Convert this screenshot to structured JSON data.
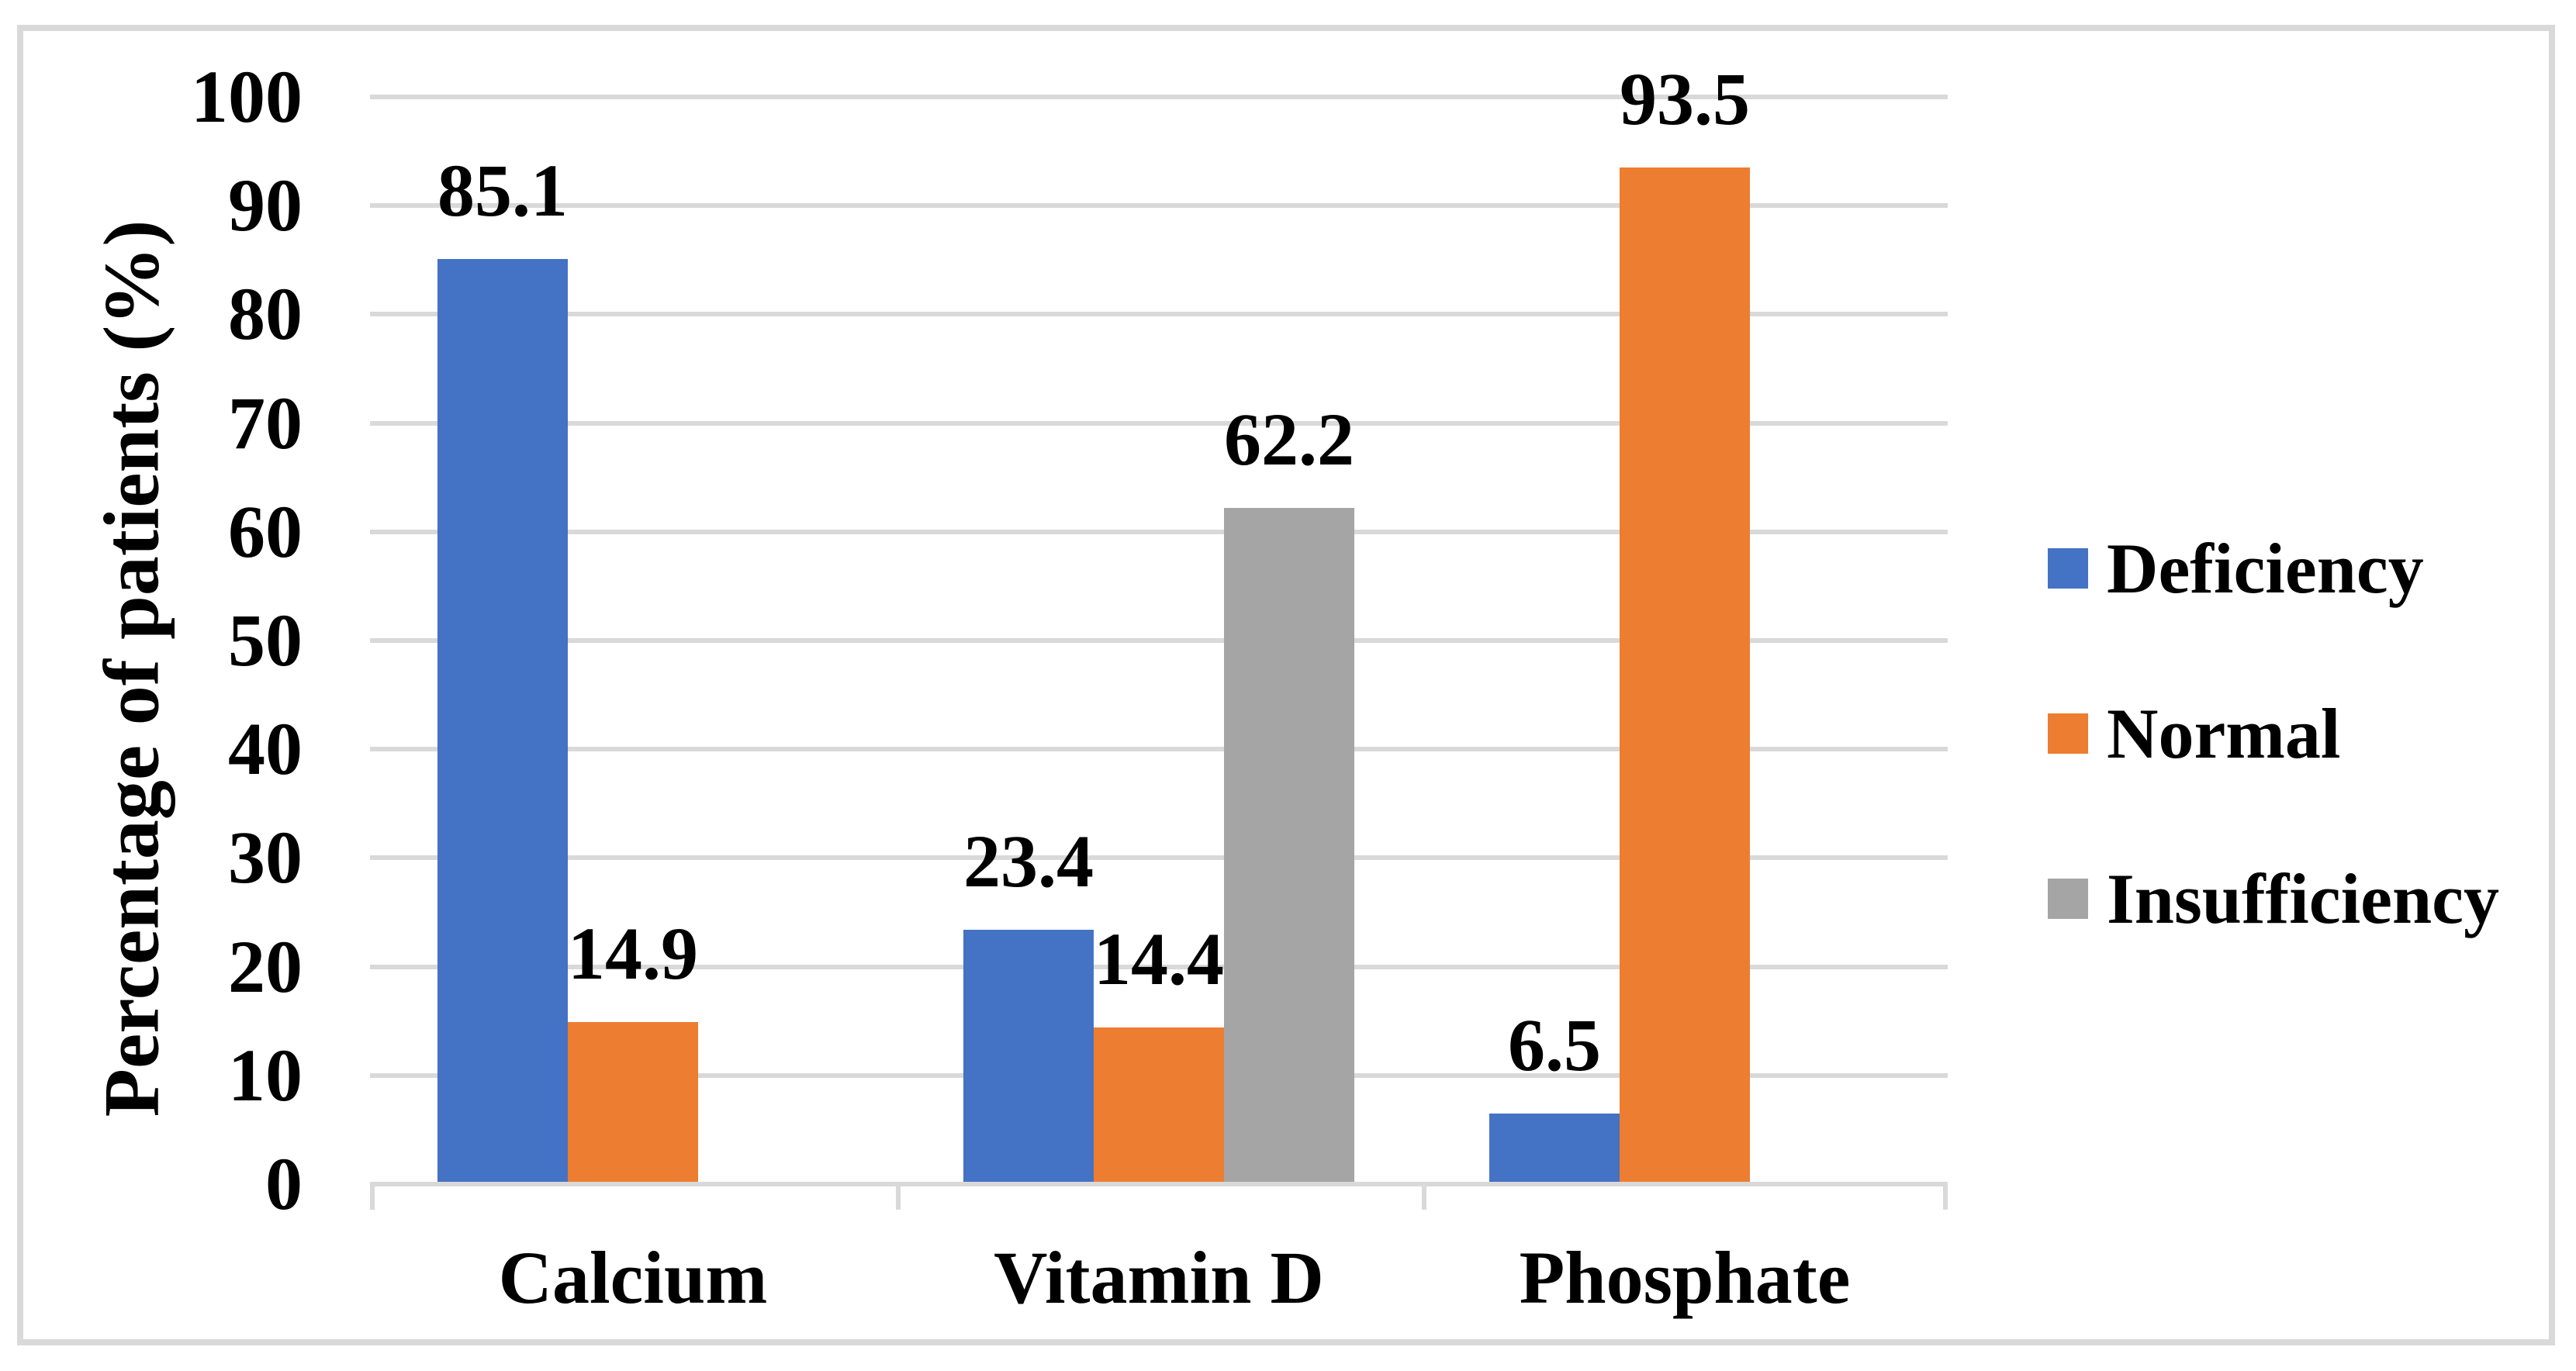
{
  "chart_data": {
    "type": "bar",
    "title": "",
    "xlabel": "",
    "ylabel": "Percentage of patients (%)",
    "ylim": [
      0,
      100
    ],
    "yticks": [
      0,
      10,
      20,
      30,
      40,
      50,
      60,
      70,
      80,
      90,
      100
    ],
    "grid": true,
    "legend_position": "right",
    "data_labels_shown": true,
    "categories": [
      "Calcium",
      "Vitamin D",
      "Phosphate"
    ],
    "series": [
      {
        "name": "Deficiency",
        "color": "#4472C4",
        "values": [
          85.1,
          23.4,
          6.5
        ]
      },
      {
        "name": "Normal",
        "color": "#ED7D31",
        "values": [
          14.9,
          14.4,
          93.5
        ]
      },
      {
        "name": "Insufficiency",
        "color": "#A5A5A5",
        "values": [
          null,
          62.2,
          null
        ]
      }
    ]
  },
  "colors": {
    "gridline": "#D9D9D9",
    "axis_line": "#D9D9D9",
    "frame_border": "#D9D9D9",
    "background": "#FFFFFF",
    "text": "#000000"
  }
}
